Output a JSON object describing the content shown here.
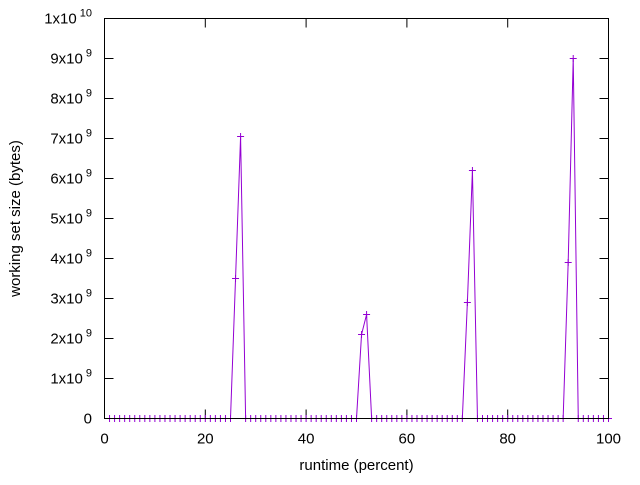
{
  "chart_data": {
    "type": "line",
    "xlabel": "runtime (percent)",
    "ylabel": "working set size (bytes)",
    "xlim": [
      0,
      100
    ],
    "ylim": [
      0,
      10000000000
    ],
    "x_ticks": [
      0,
      20,
      40,
      60,
      80,
      100
    ],
    "y_ticks": [
      {
        "value": 0,
        "mantissa": "0",
        "exponent": ""
      },
      {
        "value": 1000000000,
        "mantissa": "1x10",
        "exponent": "9"
      },
      {
        "value": 2000000000,
        "mantissa": "2x10",
        "exponent": "9"
      },
      {
        "value": 3000000000,
        "mantissa": "3x10",
        "exponent": "9"
      },
      {
        "value": 4000000000,
        "mantissa": "4x10",
        "exponent": "9"
      },
      {
        "value": 5000000000,
        "mantissa": "5x10",
        "exponent": "9"
      },
      {
        "value": 6000000000,
        "mantissa": "6x10",
        "exponent": "9"
      },
      {
        "value": 7000000000,
        "mantissa": "7x10",
        "exponent": "9"
      },
      {
        "value": 8000000000,
        "mantissa": "8x10",
        "exponent": "9"
      },
      {
        "value": 9000000000,
        "mantissa": "9x10",
        "exponent": "9"
      },
      {
        "value": 10000000000,
        "mantissa": "1x10",
        "exponent": "10"
      }
    ],
    "grid": false,
    "legend": "none",
    "series": [
      {
        "color": "#9400d3",
        "marker": "plus",
        "x_start": 1,
        "x_step": 1,
        "count": 100,
        "points": [
          {
            "x": 25,
            "y": 0
          },
          {
            "x": 26,
            "y": 3500000000
          },
          {
            "x": 27,
            "y": 7050000000
          },
          {
            "x": 28,
            "y": 0
          },
          {
            "x": 51,
            "y": 2100000000
          },
          {
            "x": 52,
            "y": 2600000000
          },
          {
            "x": 53,
            "y": 0
          },
          {
            "x": 72,
            "y": 2900000000
          },
          {
            "x": 73,
            "y": 6200000000
          },
          {
            "x": 74,
            "y": 0
          },
          {
            "x": 92,
            "y": 3900000000
          },
          {
            "x": 93,
            "y": 9000000000
          },
          {
            "x": 94,
            "y": 0
          }
        ]
      }
    ]
  }
}
